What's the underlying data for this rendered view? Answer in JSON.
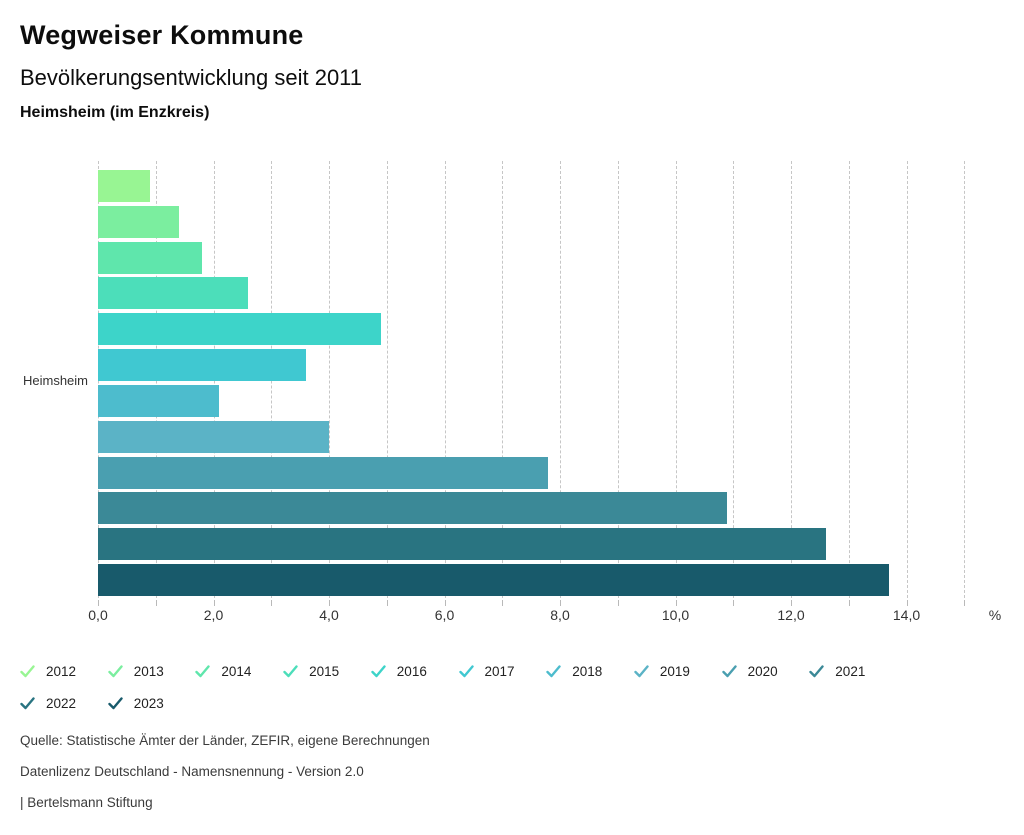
{
  "header": {
    "title": "Wegweiser Kommune",
    "subtitle": "Bevölkerungsentwicklung seit 2011",
    "location": "Heimsheim (im Enzkreis)"
  },
  "chart_data": {
    "type": "bar",
    "orientation": "horizontal",
    "title": "Bevölkerungsentwicklung seit 2011",
    "category_label": "Heimsheim",
    "unit_label": "%",
    "xlim": [
      0,
      15
    ],
    "grid": true,
    "gridline_step": 1,
    "x_ticks": [
      {
        "value": 0,
        "label": "0,0"
      },
      {
        "value": 2,
        "label": "2,0"
      },
      {
        "value": 4,
        "label": "4,0"
      },
      {
        "value": 6,
        "label": "6,0"
      },
      {
        "value": 8,
        "label": "8,0"
      },
      {
        "value": 10,
        "label": "10,0"
      },
      {
        "value": 12,
        "label": "12,0"
      },
      {
        "value": 14,
        "label": "14,0"
      }
    ],
    "series": [
      {
        "name": "2012",
        "value": 0.9,
        "color": "#98f593"
      },
      {
        "name": "2013",
        "value": 1.4,
        "color": "#7bee9f"
      },
      {
        "name": "2014",
        "value": 1.8,
        "color": "#5fe6ac"
      },
      {
        "name": "2015",
        "value": 2.6,
        "color": "#4cdeba"
      },
      {
        "name": "2016",
        "value": 4.9,
        "color": "#3dd4c9"
      },
      {
        "name": "2017",
        "value": 3.6,
        "color": "#40c8d1"
      },
      {
        "name": "2018",
        "value": 2.1,
        "color": "#4dbccd"
      },
      {
        "name": "2019",
        "value": 4.0,
        "color": "#5bb3c6"
      },
      {
        "name": "2020",
        "value": 7.8,
        "color": "#4a9fb0"
      },
      {
        "name": "2021",
        "value": 10.9,
        "color": "#3b8997"
      },
      {
        "name": "2022",
        "value": 12.6,
        "color": "#297481"
      },
      {
        "name": "2023",
        "value": 13.7,
        "color": "#185a6b"
      }
    ],
    "legend_position": "bottom",
    "legend_rows": [
      [
        "2012",
        "2013",
        "2014",
        "2015",
        "2016",
        "2017",
        "2018",
        "2019",
        "2020",
        "2021"
      ],
      [
        "2022",
        "2023"
      ]
    ]
  },
  "footer": {
    "source": "Quelle: Statistische Ämter der Länder, ZEFIR, eigene Berechnungen",
    "license": "Datenlizenz Deutschland - Namensnennung - Version 2.0",
    "attribution": "| Bertelsmann Stiftung"
  }
}
